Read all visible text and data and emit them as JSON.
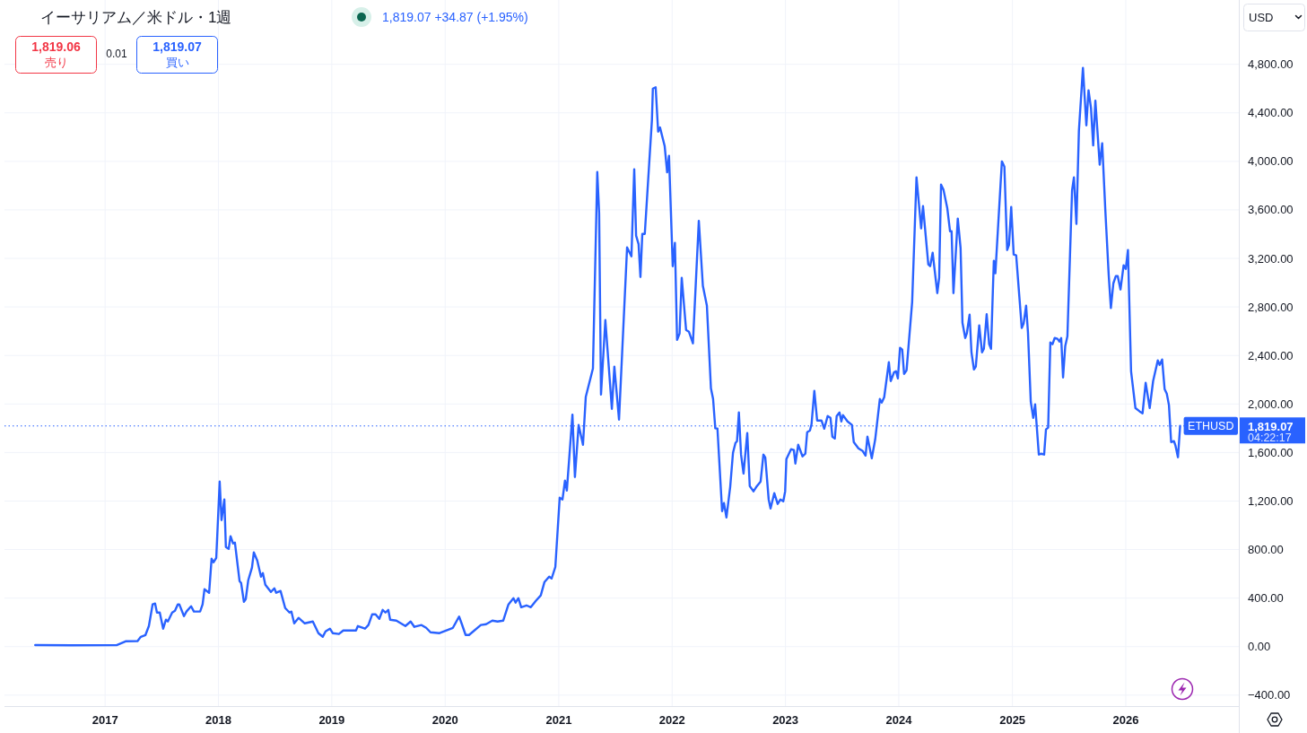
{
  "chart_data": {
    "type": "line",
    "title": "イーサリアム／米ドル・1週",
    "subtitle": "1,819.07 +34.87 (+1.95%)",
    "annotations": [
      "1,819.06",
      "売り",
      "0.01",
      "1,819.07",
      "買い",
      "USD",
      "04:22:17"
    ],
    "series": [
      {
        "name": "ETHUSD",
        "color": "#2962ff",
        "x": [
          "2016-05-21",
          "2016-09-15",
          "2017-02-07",
          "2017-03-08",
          "2017-04-15",
          "2017-04-26",
          "2017-05-11",
          "2017-05-22",
          "2017-06-03",
          "2017-06-11",
          "2017-06-17",
          "2017-06-26",
          "2017-07-07",
          "2017-07-16",
          "2017-07-22",
          "2017-08-05",
          "2017-08-14",
          "2017-08-23",
          "2017-08-28",
          "2017-09-12",
          "2017-09-20",
          "2017-10-05",
          "2017-10-14",
          "2017-11-03",
          "2017-11-11",
          "2017-11-17",
          "2017-12-02",
          "2017-12-10",
          "2017-12-16",
          "2017-12-25",
          "2018-01-05",
          "2018-01-11",
          "2018-01-20",
          "2018-01-25",
          "2018-02-03",
          "2018-02-09",
          "2018-02-17",
          "2018-02-23",
          "2018-03-10",
          "2018-03-15",
          "2018-03-24",
          "2018-03-30",
          "2018-04-07",
          "2018-04-19",
          "2018-04-25",
          "2018-05-06",
          "2018-05-18",
          "2018-05-24",
          "2018-06-01",
          "2018-06-19",
          "2018-06-30",
          "2018-07-06",
          "2018-07-20",
          "2018-08-04",
          "2018-08-18",
          "2018-08-24",
          "2018-09-02",
          "2018-09-16",
          "2018-10-06",
          "2018-11-01",
          "2018-11-19",
          "2018-12-03",
          "2018-12-12",
          "2018-12-26",
          "2019-01-04",
          "2019-01-24",
          "2019-02-07",
          "2019-03-20",
          "2019-03-26",
          "2019-04-18",
          "2019-04-29",
          "2019-05-11",
          "2019-05-22",
          "2019-06-03",
          "2019-06-14",
          "2019-06-23",
          "2019-07-02",
          "2019-07-08",
          "2019-07-28",
          "2019-08-26",
          "2019-09-12",
          "2019-09-24",
          "2019-10-17",
          "2019-11-01",
          "2019-11-15",
          "2019-12-14",
          "2020-01-26",
          "2020-02-15",
          "2020-02-24",
          "2020-03-07",
          "2020-03-18",
          "2020-04-25",
          "2020-05-12",
          "2020-06-01",
          "2020-06-18",
          "2020-07-06",
          "2020-07-23",
          "2020-08-08",
          "2020-08-15",
          "2020-08-24",
          "2020-09-02",
          "2020-09-19",
          "2020-10-03",
          "2020-10-19",
          "2020-11-04",
          "2020-11-16",
          "2020-12-01",
          "2020-12-09",
          "2020-12-21",
          "2021-01-04",
          "2021-01-13",
          "2021-01-21",
          "2021-01-27",
          "2021-02-14",
          "2021-02-22",
          "2021-03-06",
          "2021-03-20",
          "2021-03-29",
          "2021-04-21",
          "2021-05-05",
          "2021-05-11",
          "2021-05-17",
          "2021-05-31",
          "2021-06-21",
          "2021-06-29",
          "2021-07-14",
          "2021-08-09",
          "2021-08-23",
          "2021-09-01",
          "2021-09-07",
          "2021-09-15",
          "2021-09-21",
          "2021-09-27",
          "2021-10-05",
          "2021-10-28",
          "2021-10-31",
          "2021-11-09",
          "2021-11-17",
          "2021-11-23",
          "2021-12-08",
          "2021-12-16",
          "2021-12-22",
          "2022-01-03",
          "2022-01-10",
          "2022-01-17",
          "2022-01-25",
          "2022-02-01",
          "2022-02-15",
          "2022-02-24",
          "2022-03-09",
          "2022-03-28",
          "2022-04-10",
          "2022-04-23",
          "2022-05-06",
          "2022-05-13",
          "2022-05-20",
          "2022-05-27",
          "2022-06-11",
          "2022-06-17",
          "2022-06-25",
          "2022-07-07",
          "2022-07-16",
          "2022-07-24",
          "2022-07-29",
          "2022-08-04",
          "2022-08-11",
          "2022-08-19",
          "2022-08-31",
          "2022-09-08",
          "2022-09-20",
          "2022-09-29",
          "2022-10-13",
          "2022-10-22",
          "2022-10-28",
          "2022-11-08",
          "2022-11-14",
          "2022-11-26",
          "2022-12-07",
          "2022-12-16",
          "2022-12-25",
          "2022-12-31",
          "2023-01-04",
          "2023-01-19",
          "2023-01-28",
          "2023-02-02",
          "2023-02-11",
          "2023-02-25",
          "2023-03-06",
          "2023-03-12",
          "2023-03-21",
          "2023-03-26",
          "2023-04-04",
          "2023-04-13",
          "2023-04-27",
          "2023-05-06",
          "2023-05-17",
          "2023-05-26",
          "2023-06-01",
          "2023-06-09",
          "2023-06-15",
          "2023-06-24",
          "2023-06-30",
          "2023-07-05",
          "2023-07-20",
          "2023-08-03",
          "2023-08-09",
          "2023-08-24",
          "2023-09-07",
          "2023-09-16",
          "2023-09-22",
          "2023-10-06",
          "2023-10-17",
          "2023-11-01",
          "2023-11-07",
          "2023-11-15",
          "2023-11-30",
          "2023-12-06",
          "2023-12-17",
          "2023-12-23",
          "2023-12-29",
          "2024-01-05",
          "2024-01-12",
          "2024-01-18",
          "2024-01-26",
          "2024-02-13",
          "2024-02-27",
          "2024-03-13",
          "2024-03-19",
          "2024-04-05",
          "2024-04-11",
          "2024-04-19",
          "2024-05-04",
          "2024-05-10",
          "2024-05-16",
          "2024-05-24",
          "2024-06-05",
          "2024-06-14",
          "2024-06-19",
          "2024-06-25",
          "2024-07-09",
          "2024-07-18",
          "2024-07-24",
          "2024-08-02",
          "2024-08-07",
          "2024-08-16",
          "2024-08-22",
          "2024-08-30",
          "2024-09-05",
          "2024-09-16",
          "2024-09-25",
          "2024-10-01",
          "2024-10-10",
          "2024-10-18",
          "2024-10-24",
          "2024-11-02",
          "2024-11-07",
          "2024-11-28",
          "2024-12-06",
          "2024-12-15",
          "2024-12-21",
          "2024-12-28",
          "2025-01-05",
          "2025-01-13",
          "2025-01-31",
          "2025-02-06",
          "2025-02-14",
          "2025-02-20",
          "2025-03-01",
          "2025-03-09",
          "2025-03-15",
          "2025-03-27",
          "2025-04-04",
          "2025-04-13",
          "2025-04-19",
          "2025-04-26",
          "2025-05-03",
          "2025-05-10",
          "2025-05-17",
          "2025-05-26",
          "2025-06-01",
          "2025-06-07",
          "2025-06-13",
          "2025-06-20",
          "2025-06-27",
          "2025-07-12",
          "2025-07-18",
          "2025-07-26",
          "2025-08-03",
          "2025-08-16",
          "2025-08-27",
          "2025-09-03",
          "2025-09-11",
          "2025-09-18",
          "2025-09-25",
          "2025-10-01",
          "2025-10-09",
          "2025-10-17",
          "2025-10-27",
          "2025-11-07",
          "2025-11-14",
          "2025-11-22",
          "2025-11-30",
          "2025-12-06",
          "2025-12-15",
          "2025-12-25",
          "2026-01-01",
          "2026-01-08",
          "2026-01-18",
          "2026-02-01",
          "2026-02-15",
          "2026-02-24",
          "2026-03-06",
          "2026-03-19",
          "2026-03-30",
          "2026-04-14",
          "2026-04-20",
          "2026-04-28",
          "2026-05-06",
          "2026-05-13",
          "2026-05-20",
          "2026-05-27",
          "2026-06-05",
          "2026-06-10",
          "2026-06-18",
          "2026-06-25"
        ],
        "values": [
          13,
          11,
          12,
          44,
          45,
          81,
          96,
          170,
          348,
          355,
          281,
          281,
          148,
          222,
          207,
          281,
          296,
          348,
          348,
          251,
          289,
          333,
          289,
          289,
          348,
          473,
          444,
          725,
          695,
          732,
          1361,
          1043,
          1213,
          821,
          806,
          910,
          851,
          858,
          540,
          525,
          370,
          392,
          547,
          651,
          777,
          710,
          577,
          606,
          510,
          451,
          481,
          444,
          459,
          318,
          281,
          289,
          192,
          237,
          192,
          207,
          111,
          81,
          126,
          148,
          111,
          104,
          133,
          133,
          170,
          148,
          178,
          266,
          266,
          229,
          303,
          281,
          303,
          222,
          214,
          170,
          207,
          163,
          178,
          155,
          118,
          111,
          155,
          248,
          185,
          96,
          96,
          178,
          185,
          214,
          207,
          214,
          348,
          400,
          363,
          400,
          325,
          340,
          325,
          377,
          422,
          533,
          577,
          562,
          658,
          1228,
          1213,
          1368,
          1287,
          1912,
          1398,
          1827,
          1664,
          2060,
          2293,
          3912,
          3572,
          2078,
          2692,
          1960,
          2308,
          1871,
          3291,
          3217,
          3935,
          3388,
          3317,
          3047,
          3402,
          3402,
          4342,
          4600,
          4611,
          4245,
          4279,
          4127,
          3909,
          4046,
          3136,
          3328,
          2529,
          2581,
          3040,
          2611,
          2596,
          2500,
          3510,
          2975,
          2810,
          2130,
          2041,
          1800,
          1797,
          1117,
          1183,
          1065,
          1316,
          1597,
          1679,
          1694,
          1930,
          1583,
          1427,
          1760,
          1324,
          1280,
          1316,
          1361,
          1583,
          1560,
          1213,
          1139,
          1265,
          1176,
          1213,
          1198,
          1280,
          1546,
          1627,
          1620,
          1509,
          1664,
          1568,
          1590,
          1768,
          1782,
          1834,
          2108,
          1864,
          1864,
          1797,
          1901,
          1886,
          1731,
          1716,
          1901,
          1930,
          1856,
          1908,
          1856,
          1827,
          1686,
          1634,
          1612,
          1575,
          1731,
          1553,
          1708,
          2041,
          2011,
          2056,
          2344,
          2189,
          2263,
          2270,
          2211,
          2463,
          2448,
          2248,
          2278,
          2840,
          3868,
          3447,
          3631,
          3151,
          3136,
          3247,
          2914,
          3040,
          3809,
          3765,
          3617,
          3424,
          3424,
          2914,
          3528,
          3284,
          2670,
          2544,
          2581,
          2736,
          2426,
          2285,
          2308,
          2648,
          2426,
          2455,
          2740,
          2493,
          2455,
          3180,
          3077,
          4000,
          3957,
          3269,
          3313,
          3624,
          3232,
          3225,
          2626,
          2663,
          2810,
          2589,
          2019,
          1886,
          1997,
          1583,
          1590,
          1583,
          1790,
          1805,
          2507,
          2493,
          2544,
          2537,
          2515,
          2544,
          2219,
          2478,
          2559,
          3761,
          3868,
          3484,
          4253,
          4771,
          4297,
          4586,
          4438,
          4131,
          4501,
          4275,
          3972,
          4149,
          3602,
          3062,
          2791,
          2995,
          3055,
          3055,
          2944,
          3143,
          3114,
          3269,
          2270,
          1967,
          1938,
          1923,
          2175,
          1967,
          2189,
          2359,
          2322,
          2367,
          2123,
          2086,
          1990,
          1686,
          1694,
          1657,
          1561,
          1819.07
        ]
      }
    ],
    "xlim": [
      "2016-02-12",
      "2026-12-31"
    ],
    "xticks": [
      "2017",
      "2018",
      "2019",
      "2020",
      "2021",
      "2022",
      "2023",
      "2024",
      "2025",
      "2026"
    ],
    "ylim": [
      -490,
      5330
    ],
    "yticks": [
      {
        "value": -400,
        "label": "−400.00"
      },
      {
        "value": 0,
        "label": "0.00"
      },
      {
        "value": 400,
        "label": "400.00"
      },
      {
        "value": 800,
        "label": "800.00"
      },
      {
        "value": 1200,
        "label": "1,200.00"
      },
      {
        "value": 1600,
        "label": "1,600.00"
      },
      {
        "value": 2000,
        "label": "2,000.00"
      },
      {
        "value": 2400,
        "label": "2,400.00"
      },
      {
        "value": 2800,
        "label": "2,800.00"
      },
      {
        "value": 3200,
        "label": "3,200.00"
      },
      {
        "value": 3600,
        "label": "3,600.00"
      },
      {
        "value": 4000,
        "label": "4,000.00"
      },
      {
        "value": 4400,
        "label": "4,400.00"
      },
      {
        "value": 4800,
        "label": "4,800.00"
      }
    ],
    "grid": true,
    "line_style": "solid",
    "ref_lines": [
      {
        "axis": "y",
        "value": 1819.07,
        "label": "1,819.07",
        "color": "#2962ff",
        "line_style": "dotted"
      }
    ]
  }
}
